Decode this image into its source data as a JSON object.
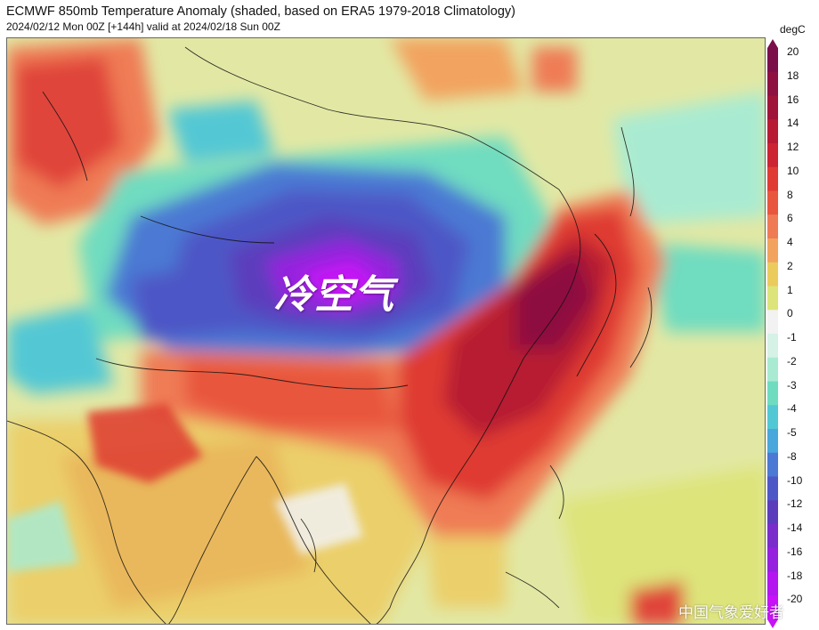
{
  "title": "ECMWF 850mb Temperature Anomaly (shaded, based on ERA5 1979-2018 Climatology)",
  "subtitle": "2024/02/12 Mon 00Z [+144h] valid at 2024/02/18 Sun 00Z",
  "annotation": "冷空气",
  "watermark": "中国气象爱好者",
  "colorbar": {
    "unit": "degC",
    "levels": [
      20,
      18,
      16,
      14,
      12,
      10,
      8,
      6,
      4,
      2,
      1,
      0,
      -1,
      -2,
      -3,
      -4,
      -5,
      -8,
      -10,
      -12,
      -14,
      -16,
      -18,
      -20
    ],
    "colors": [
      "#7a0f4a",
      "#8e1141",
      "#a0143a",
      "#b71a33",
      "#cc2433",
      "#df3b33",
      "#e8563e",
      "#ef7b55",
      "#f2a35e",
      "#ebcb5c",
      "#dde47a",
      "#f2f2f2",
      "#d6f1e6",
      "#a9ebd2",
      "#6fdcc0",
      "#52c8d4",
      "#4aa7dc",
      "#4b79d3",
      "#4e57c6",
      "#5b3dbc",
      "#7a2dcb",
      "#9520de",
      "#b316ef",
      "#c712f7"
    ]
  }
}
